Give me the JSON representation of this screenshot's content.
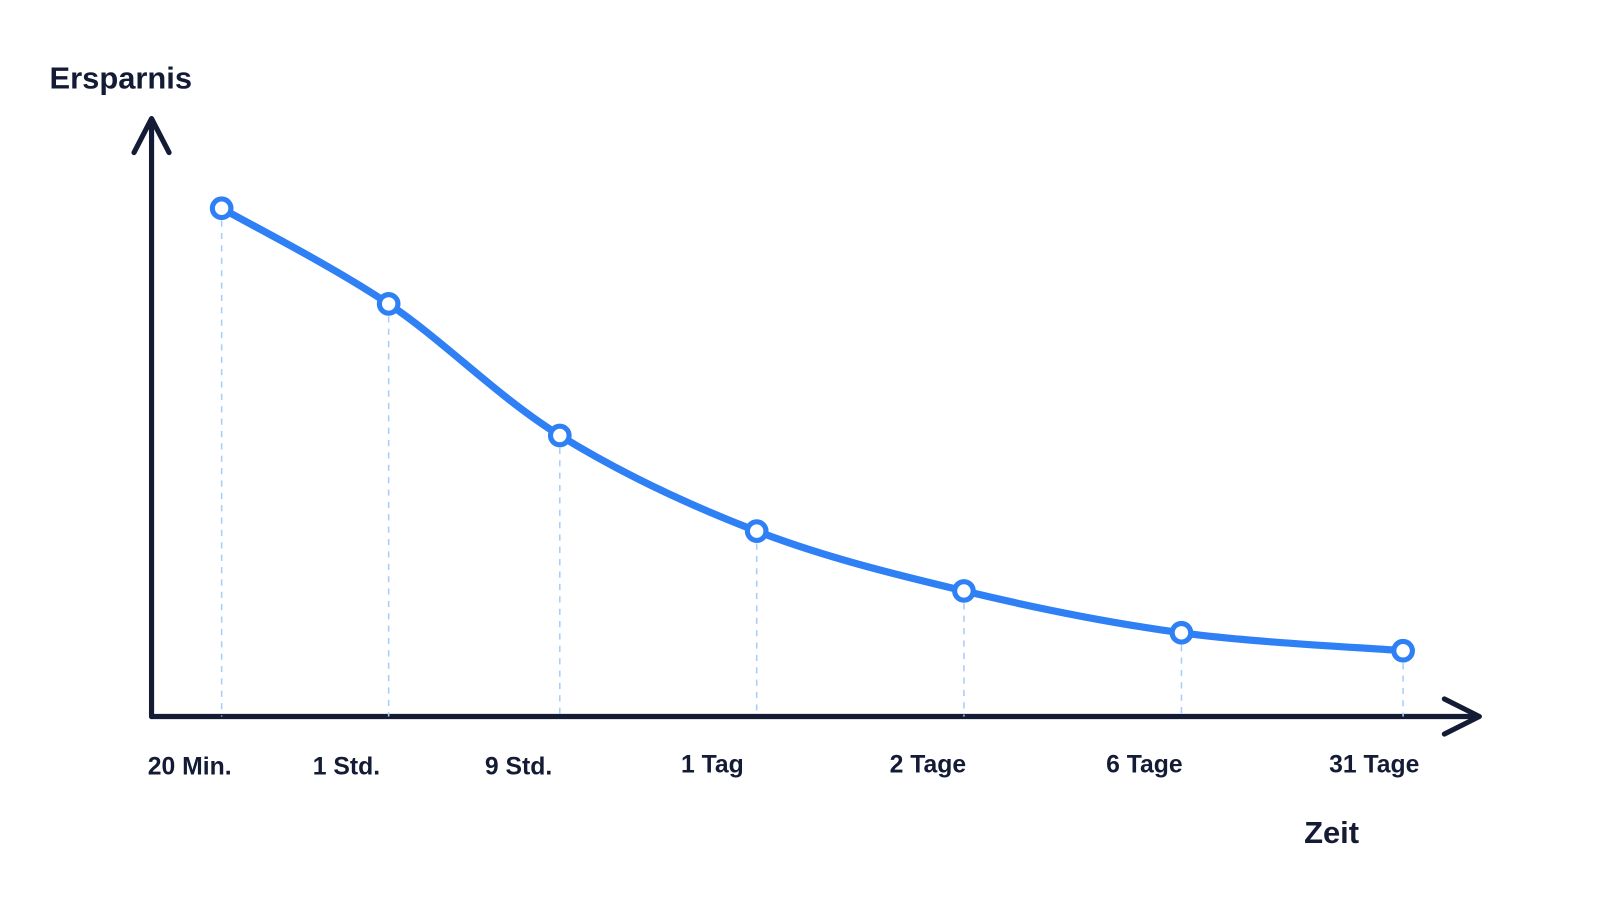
{
  "chart_data": {
    "type": "line",
    "x_label": "Zeit",
    "y_label": "Ersparnis",
    "categories": [
      "20 Min.",
      "1 Std.",
      "9 Std.",
      "1 Tag",
      "2 Tage",
      "6 Tage",
      "31 Tage"
    ],
    "values": [
      85,
      69,
      47,
      31,
      21,
      14,
      11
    ],
    "color": "#2f80f5",
    "ylim": [
      0,
      100
    ]
  }
}
